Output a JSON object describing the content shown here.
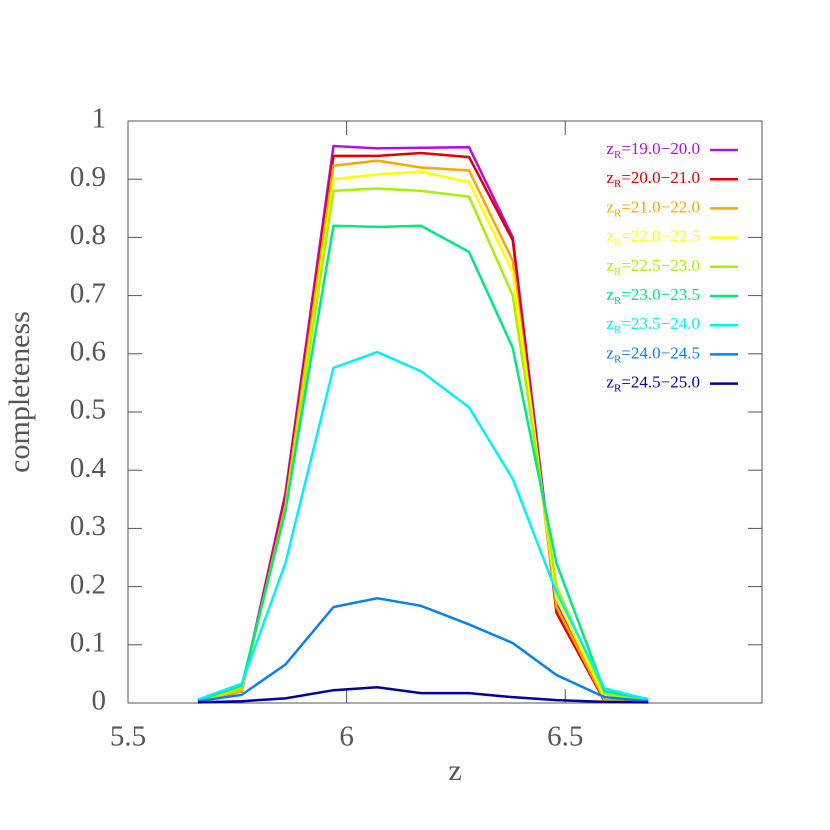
{
  "chart_data": {
    "type": "line",
    "xlabel": "z",
    "ylabel": "completeness",
    "x": [
      5.66,
      5.76,
      5.86,
      5.97,
      6.07,
      6.17,
      6.28,
      6.38,
      6.48,
      6.59,
      6.69
    ],
    "xlim": [
      5.5,
      6.95
    ],
    "xticks": [
      5.5,
      6,
      6.5
    ],
    "ylim": [
      0,
      1
    ],
    "yticks": [
      0,
      0.1,
      0.2,
      0.3,
      0.4,
      0.5,
      0.6,
      0.7,
      0.8,
      0.9,
      1
    ],
    "grid": false,
    "legend": "upper right",
    "series": [
      {
        "name": "zR=19.0−20.0",
        "color": "#b010e8",
        "values": [
          0.003,
          0.02,
          0.36,
          0.957,
          0.953,
          0.954,
          0.955,
          0.8,
          0.17,
          0.005,
          0.003
        ]
      },
      {
        "name": "zR=20.0−21.0",
        "color": "#e00000",
        "values": [
          0.003,
          0.02,
          0.35,
          0.94,
          0.94,
          0.945,
          0.938,
          0.795,
          0.155,
          0.003,
          0.002
        ]
      },
      {
        "name": "zR=21.0−22.0",
        "color": "#ffa500",
        "values": [
          0.003,
          0.02,
          0.34,
          0.923,
          0.932,
          0.92,
          0.915,
          0.76,
          0.165,
          0.005,
          0.003
        ]
      },
      {
        "name": "zR=22.0−22.5",
        "color": "#ffff00",
        "values": [
          0.003,
          0.025,
          0.33,
          0.9,
          0.908,
          0.913,
          0.895,
          0.74,
          0.18,
          0.01,
          0.005
        ]
      },
      {
        "name": "zR=22.5−23.0",
        "color": "#a8f000",
        "values": [
          0.004,
          0.025,
          0.33,
          0.88,
          0.884,
          0.88,
          0.87,
          0.7,
          0.2,
          0.015,
          0.005
        ]
      },
      {
        "name": "zR=23.0−23.5",
        "color": "#00e880",
        "values": [
          0.005,
          0.03,
          0.33,
          0.82,
          0.818,
          0.82,
          0.775,
          0.61,
          0.24,
          0.02,
          0.007
        ]
      },
      {
        "name": "zR=23.5−24.0",
        "color": "#00f0ff",
        "values": [
          0.006,
          0.033,
          0.24,
          0.576,
          0.603,
          0.57,
          0.508,
          0.385,
          0.19,
          0.025,
          0.006
        ]
      },
      {
        "name": "zR=24.0−24.5",
        "color": "#0a80f0",
        "values": [
          0.003,
          0.014,
          0.066,
          0.165,
          0.18,
          0.167,
          0.135,
          0.103,
          0.048,
          0.01,
          0.003
        ]
      },
      {
        "name": "zR=24.5−25.0",
        "color": "#0000a0",
        "values": [
          0.001,
          0.003,
          0.008,
          0.022,
          0.027,
          0.017,
          0.017,
          0.01,
          0.005,
          0.002,
          0.001
        ]
      }
    ]
  }
}
